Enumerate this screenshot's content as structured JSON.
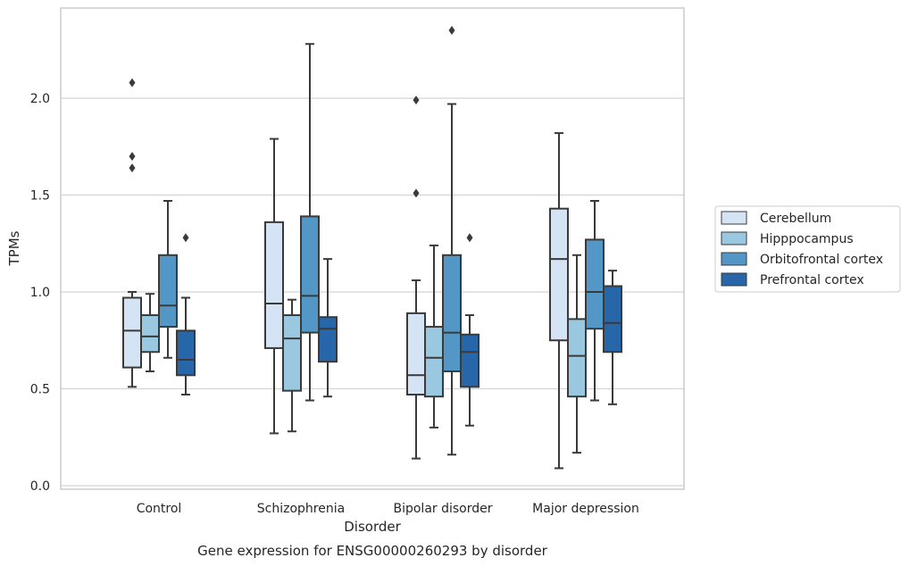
{
  "chart_data": {
    "type": "box",
    "title": "",
    "caption": "Gene expression for ENSG00000260293 by disorder",
    "xlabel": "Disorder",
    "ylabel": "TPMs",
    "ylim": [
      -0.02,
      2.47
    ],
    "yticks": [
      0.0,
      0.5,
      1.0,
      1.5,
      2.0
    ],
    "ytick_labels": [
      "0.0",
      "0.5",
      "1.0",
      "1.5",
      "2.0"
    ],
    "grid": "horizontal",
    "legend_position": "right",
    "categories": [
      "Control",
      "Schizophrenia",
      "Bipolar disorder",
      "Major depression"
    ],
    "series": [
      {
        "name": "Cerebellum",
        "color": "#d4e4f4",
        "boxes": [
          {
            "whisker_low": 0.51,
            "q1": 0.61,
            "median": 0.8,
            "q3": 0.97,
            "whisker_high": 1.0,
            "outliers": [
              1.64,
              1.7,
              2.08
            ]
          },
          {
            "whisker_low": 0.27,
            "q1": 0.71,
            "median": 0.94,
            "q3": 1.36,
            "whisker_high": 1.79,
            "outliers": []
          },
          {
            "whisker_low": 0.14,
            "q1": 0.47,
            "median": 0.57,
            "q3": 0.89,
            "whisker_high": 1.06,
            "outliers": [
              1.51,
              1.99
            ]
          },
          {
            "whisker_low": 0.09,
            "q1": 0.75,
            "median": 1.17,
            "q3": 1.43,
            "whisker_high": 1.82,
            "outliers": []
          }
        ]
      },
      {
        "name": "Hipppocampus",
        "color": "#9ac8e0",
        "boxes": [
          {
            "whisker_low": 0.59,
            "q1": 0.69,
            "median": 0.77,
            "q3": 0.88,
            "whisker_high": 0.99,
            "outliers": []
          },
          {
            "whisker_low": 0.28,
            "q1": 0.49,
            "median": 0.76,
            "q3": 0.88,
            "whisker_high": 0.96,
            "outliers": []
          },
          {
            "whisker_low": 0.3,
            "q1": 0.46,
            "median": 0.66,
            "q3": 0.82,
            "whisker_high": 1.24,
            "outliers": []
          },
          {
            "whisker_low": 0.17,
            "q1": 0.46,
            "median": 0.67,
            "q3": 0.86,
            "whisker_high": 1.19,
            "outliers": []
          }
        ]
      },
      {
        "name": "Orbitofrontal cortex",
        "color": "#5297c6",
        "boxes": [
          {
            "whisker_low": 0.66,
            "q1": 0.82,
            "median": 0.93,
            "q3": 1.19,
            "whisker_high": 1.47,
            "outliers": []
          },
          {
            "whisker_low": 0.44,
            "q1": 0.79,
            "median": 0.98,
            "q3": 1.39,
            "whisker_high": 2.28,
            "outliers": []
          },
          {
            "whisker_low": 0.16,
            "q1": 0.59,
            "median": 0.79,
            "q3": 1.19,
            "whisker_high": 1.97,
            "outliers": [
              2.35
            ]
          },
          {
            "whisker_low": 0.44,
            "q1": 0.81,
            "median": 1.0,
            "q3": 1.27,
            "whisker_high": 1.47,
            "outliers": []
          }
        ]
      },
      {
        "name": "Prefrontal cortex",
        "color": "#2766a8",
        "boxes": [
          {
            "whisker_low": 0.47,
            "q1": 0.57,
            "median": 0.65,
            "q3": 0.8,
            "whisker_high": 0.97,
            "outliers": [
              1.28
            ]
          },
          {
            "whisker_low": 0.46,
            "q1": 0.64,
            "median": 0.81,
            "q3": 0.87,
            "whisker_high": 1.17,
            "outliers": []
          },
          {
            "whisker_low": 0.31,
            "q1": 0.51,
            "median": 0.69,
            "q3": 0.78,
            "whisker_high": 0.88,
            "outliers": [
              1.28
            ]
          },
          {
            "whisker_low": 0.42,
            "q1": 0.69,
            "median": 0.84,
            "q3": 1.03,
            "whisker_high": 1.11,
            "outliers": []
          }
        ]
      }
    ]
  }
}
